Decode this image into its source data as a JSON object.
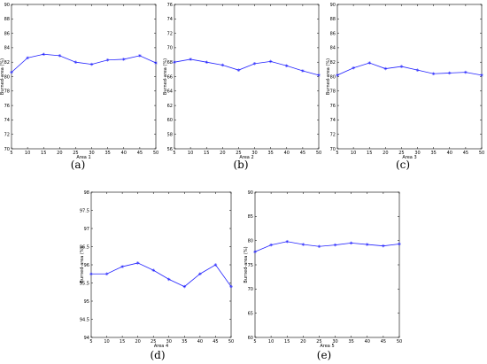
{
  "chart_data": [
    {
      "type": "line",
      "caption": "(a)",
      "xlabel": "Area 1",
      "ylabel": "Burned-area (%)",
      "xlim": [
        5,
        50
      ],
      "ylim": [
        70,
        90
      ],
      "xticks": [
        5,
        10,
        15,
        20,
        25,
        30,
        35,
        40,
        45,
        50
      ],
      "yticks": [
        70,
        72,
        74,
        76,
        78,
        80,
        82,
        84,
        86,
        88,
        90
      ],
      "series": [
        {
          "x": [
            5,
            10,
            15,
            20,
            25,
            30,
            35,
            40,
            45,
            50
          ],
          "values": [
            80.6,
            82.6,
            83.1,
            82.9,
            82.0,
            81.7,
            82.3,
            82.4,
            82.9,
            81.9
          ]
        }
      ]
    },
    {
      "type": "line",
      "caption": "(b)",
      "xlabel": "Area 2",
      "ylabel": "Burned-area (%)",
      "xlim": [
        5,
        50
      ],
      "ylim": [
        56,
        76
      ],
      "xticks": [
        5,
        10,
        15,
        20,
        25,
        30,
        35,
        40,
        45,
        50
      ],
      "yticks": [
        56,
        58,
        60,
        62,
        64,
        66,
        68,
        70,
        72,
        74,
        76
      ],
      "series": [
        {
          "x": [
            5,
            10,
            15,
            20,
            25,
            30,
            35,
            40,
            45,
            50
          ],
          "values": [
            68.0,
            68.4,
            68.0,
            67.6,
            66.9,
            67.8,
            68.1,
            67.5,
            66.8,
            66.2
          ]
        }
      ]
    },
    {
      "type": "line",
      "caption": "(c)",
      "xlabel": "Area 3",
      "ylabel": "Burned-area (%)",
      "xlim": [
        5,
        50
      ],
      "ylim": [
        70,
        90
      ],
      "xticks": [
        5,
        10,
        15,
        20,
        25,
        30,
        35,
        40,
        45,
        50
      ],
      "yticks": [
        70,
        72,
        74,
        76,
        78,
        80,
        82,
        84,
        86,
        88,
        90
      ],
      "series": [
        {
          "x": [
            5,
            10,
            15,
            20,
            25,
            30,
            35,
            40,
            45,
            50
          ],
          "values": [
            80.2,
            81.2,
            81.9,
            81.1,
            81.4,
            80.9,
            80.4,
            80.5,
            80.6,
            80.2
          ]
        }
      ]
    },
    {
      "type": "line",
      "caption": "(d)",
      "xlabel": "Area 4",
      "ylabel": "Burned-area (%)",
      "xlim": [
        5,
        50
      ],
      "ylim": [
        94,
        98
      ],
      "xticks": [
        5,
        10,
        15,
        20,
        25,
        30,
        35,
        40,
        45,
        50
      ],
      "yticks": [
        94,
        94.5,
        95,
        95.5,
        96,
        96.5,
        97,
        97.5,
        98
      ],
      "yticklabels": [
        "94",
        "94.5",
        "95",
        "95.5",
        "96",
        "96.5",
        "97",
        "97.5",
        "98"
      ],
      "series": [
        {
          "x": [
            5,
            10,
            15,
            20,
            25,
            30,
            35,
            40,
            45,
            50
          ],
          "values": [
            95.75,
            95.75,
            95.95,
            96.05,
            95.85,
            95.6,
            95.4,
            95.75,
            96.0,
            95.4
          ]
        }
      ]
    },
    {
      "type": "line",
      "caption": "(e)",
      "xlabel": "Area 5",
      "ylabel": "Burned-area (%)",
      "xlim": [
        5,
        50
      ],
      "ylim": [
        60,
        90
      ],
      "xticks": [
        5,
        10,
        15,
        20,
        25,
        30,
        35,
        40,
        45,
        50
      ],
      "yticks": [
        60,
        65,
        70,
        75,
        80,
        85,
        90
      ],
      "series": [
        {
          "x": [
            5,
            10,
            15,
            20,
            25,
            30,
            35,
            40,
            45,
            50
          ],
          "values": [
            77.7,
            79.1,
            79.8,
            79.2,
            78.8,
            79.1,
            79.5,
            79.2,
            78.9,
            79.3
          ]
        }
      ]
    }
  ],
  "colors": {
    "line": "#2222ff",
    "axis": "#000000",
    "background": "#ffffff"
  }
}
